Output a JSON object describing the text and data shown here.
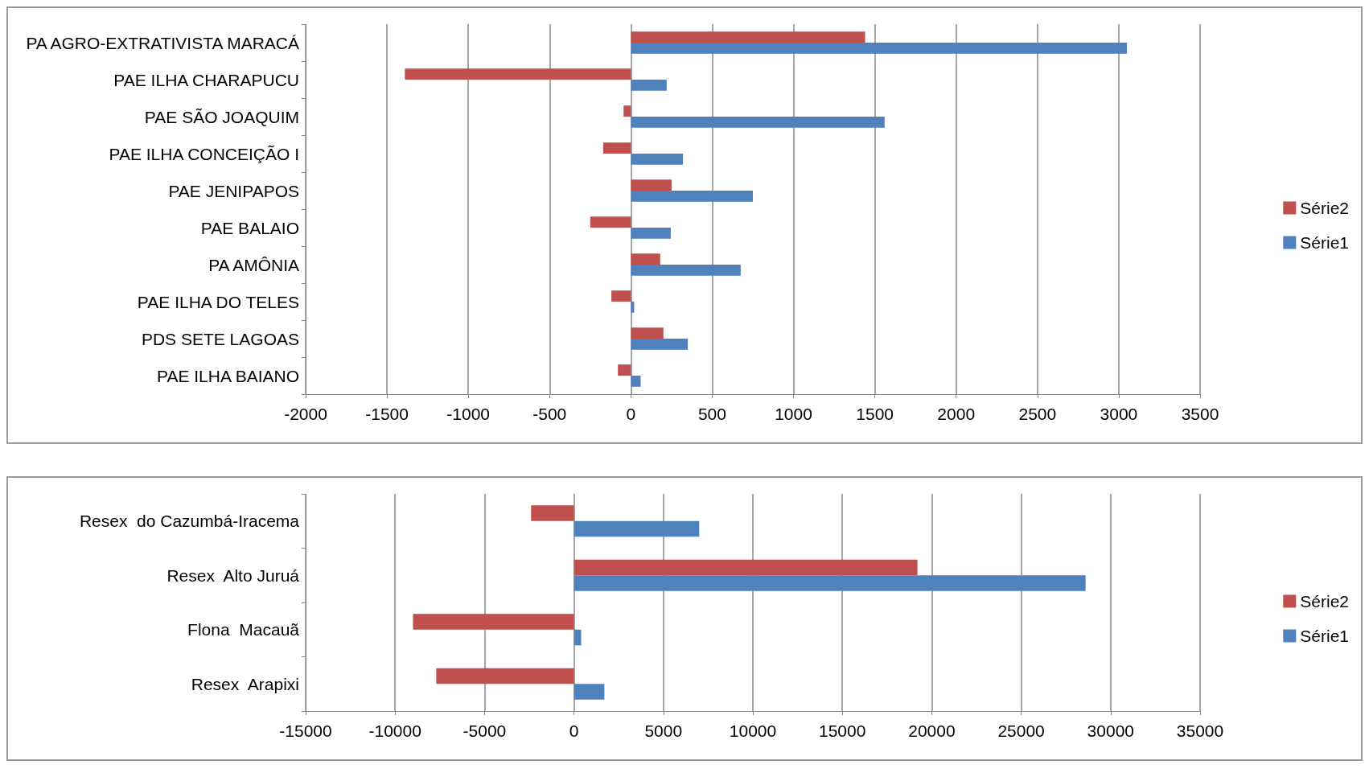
{
  "chart_data": [
    {
      "type": "bar",
      "orientation": "horizontal",
      "categories": [
        "PA AGRO-EXTRATIVISTA MARACÁ",
        "PAE ILHA CHARAPUCU",
        "PAE SÃO JOAQUIM",
        "PAE ILHA CONCEIÇÃO I",
        "PAE JENIPAPOS",
        "PAE BALAIO",
        "PA AMÔNIA",
        "PAE ILHA DO TELES",
        "PDS SETE LAGOAS",
        "PAE ILHA BAIANO"
      ],
      "series": [
        {
          "name": "Série2",
          "color": "#c0504d",
          "values": [
            1440,
            -1390,
            -45,
            -170,
            250,
            -250,
            180,
            -120,
            200,
            -80
          ]
        },
        {
          "name": "Série1",
          "color": "#4f81bd",
          "values": [
            3050,
            220,
            1560,
            320,
            750,
            245,
            675,
            20,
            350,
            60
          ]
        }
      ],
      "xlim": [
        -2000,
        3500
      ],
      "xticks": [
        -2000,
        -1500,
        -1000,
        -500,
        0,
        500,
        1000,
        1500,
        2000,
        2500,
        3000,
        3500
      ],
      "grid": "x",
      "legend": "right"
    },
    {
      "type": "bar",
      "orientation": "horizontal",
      "categories": [
        "Resex  do Cazumbá-Iracema",
        "Resex  Alto Juruá",
        "Flona  Macauã",
        "Resex  Arapixi"
      ],
      "series": [
        {
          "name": "Série2",
          "color": "#c0504d",
          "values": [
            -2400,
            19200,
            -9000,
            -7700
          ]
        },
        {
          "name": "Série1",
          "color": "#4f81bd",
          "values": [
            7000,
            28600,
            400,
            1700
          ]
        }
      ],
      "xlim": [
        -15000,
        35000
      ],
      "xticks": [
        -15000,
        -10000,
        -5000,
        0,
        5000,
        10000,
        15000,
        20000,
        25000,
        30000,
        35000
      ],
      "grid": "x",
      "legend": "right"
    }
  ]
}
